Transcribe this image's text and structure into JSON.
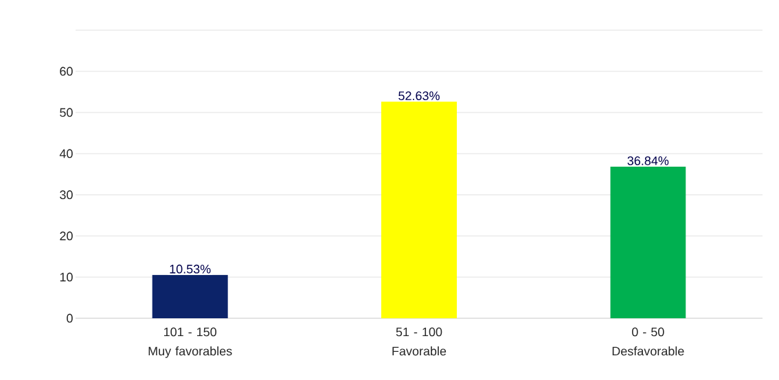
{
  "chart_data": {
    "type": "bar",
    "categories": [
      "101 - 150\nMuy favorables",
      "51 - 100\nFavorable",
      "0 - 50\nDesfavorable"
    ],
    "values": [
      10.53,
      52.63,
      36.84
    ],
    "colors": [
      "#0c2369",
      "#ffff00",
      "#00b050"
    ],
    "value_labels": [
      "10.53%",
      "52.63%",
      "36.84%"
    ],
    "ylim": [
      0,
      70
    ],
    "yticks": [
      0,
      10,
      20,
      30,
      40,
      50,
      60,
      {
        "value": 70,
        "label": null
      }
    ],
    "grid": "y"
  }
}
